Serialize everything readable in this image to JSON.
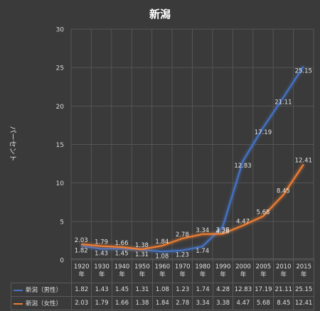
{
  "chart_data": {
    "type": "line",
    "title": "新潟",
    "ylabel": "パーセント",
    "ylim": [
      0,
      30
    ],
    "yticks": [
      0,
      5,
      10,
      15,
      20,
      25,
      30
    ],
    "grid": true,
    "legend": "table-below",
    "categories": [
      "1920年",
      "1930年",
      "1940年",
      "1950年",
      "1960年",
      "1970年",
      "1980年",
      "1990年",
      "2000年",
      "2005年",
      "2010年",
      "2015年"
    ],
    "series": [
      {
        "name": "新潟（男性）",
        "color": "#4472c4",
        "values": [
          1.82,
          1.43,
          1.45,
          1.31,
          1.08,
          1.23,
          1.74,
          4.28,
          12.83,
          17.19,
          21.11,
          25.15
        ],
        "labels": [
          "1.82",
          "1.43",
          "1.45",
          "1.31",
          "1.08",
          "1.23",
          "1.74",
          "4.28",
          "12.83",
          "17.19",
          "21.11",
          "25.15"
        ]
      },
      {
        "name": "新潟（女性）",
        "color": "#ed7d31",
        "values": [
          2.03,
          1.79,
          1.66,
          1.38,
          1.84,
          2.78,
          3.34,
          3.38,
          4.47,
          5.68,
          8.45,
          12.41
        ],
        "labels": [
          "2.03",
          "1.79",
          "1.66",
          "1.38",
          "1.84",
          "2.78",
          "3.34",
          "3.38",
          "4.47",
          "5.68",
          "8.45",
          "12.41"
        ]
      }
    ]
  }
}
